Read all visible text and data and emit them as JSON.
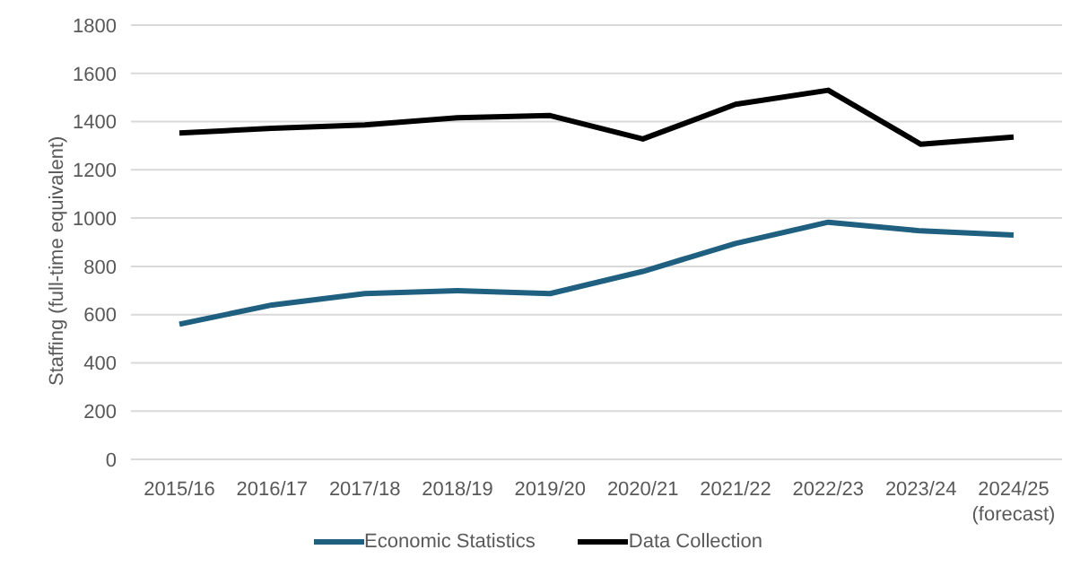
{
  "chart_data": {
    "type": "line",
    "ylabel": "Staffing (full-time equivalent)",
    "categories": [
      "2015/16",
      "2016/17",
      "2017/18",
      "2018/19",
      "2019/20",
      "2020/21",
      "2021/22",
      "2022/23",
      "2023/24",
      "2024/25 (forecast)"
    ],
    "series": [
      {
        "name": "Economic Statistics",
        "color": "#1f5f80",
        "values": [
          560,
          640,
          687,
          699,
          687,
          779,
          895,
          983,
          947,
          930
        ]
      },
      {
        "name": "Data Collection",
        "color": "#000000",
        "values": [
          1353,
          1372,
          1386,
          1416,
          1425,
          1328,
          1472,
          1530,
          1306,
          1336
        ]
      }
    ],
    "ylim": [
      0,
      1800
    ],
    "yticks": [
      0,
      200,
      400,
      600,
      800,
      1000,
      1200,
      1400,
      1600,
      1800
    ],
    "grid": "y",
    "legend": "bottom",
    "marker": "none",
    "line_style": "solid"
  }
}
